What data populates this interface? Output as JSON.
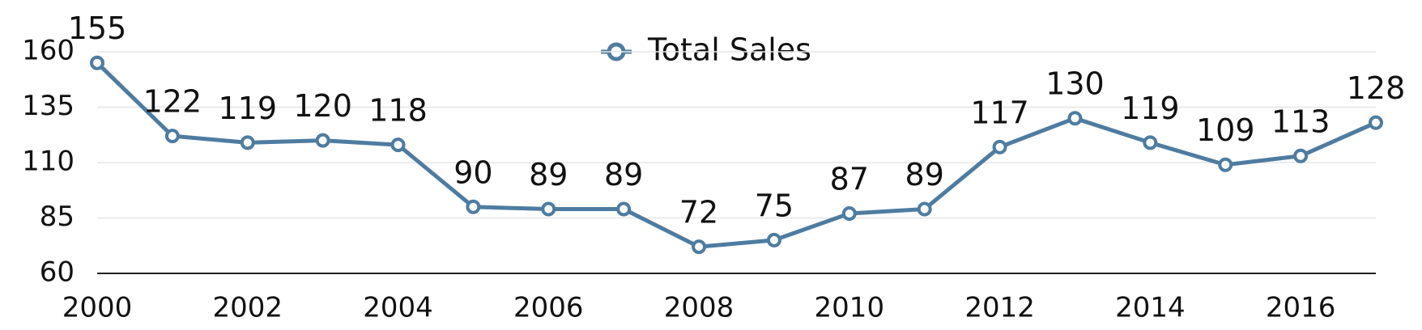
{
  "chart_data": {
    "type": "line",
    "x": [
      2000,
      2001,
      2002,
      2003,
      2004,
      2005,
      2006,
      2007,
      2008,
      2009,
      2010,
      2011,
      2012,
      2013,
      2014,
      2015,
      2016,
      2017
    ],
    "series": [
      {
        "name": "Total Sales",
        "color": "#4e7ca1",
        "values": [
          155,
          122,
          119,
          120,
          118,
          90,
          89,
          89,
          72,
          75,
          87,
          89,
          117,
          130,
          119,
          109,
          113,
          128
        ]
      }
    ],
    "xlim": [
      2000,
      2017
    ],
    "xticks": [
      2000,
      2002,
      2004,
      2006,
      2008,
      2010,
      2012,
      2014,
      2016
    ],
    "ylim": [
      60,
      160
    ],
    "yticks": [
      60,
      85,
      110,
      135,
      160
    ],
    "grid": true,
    "legend": "top"
  }
}
